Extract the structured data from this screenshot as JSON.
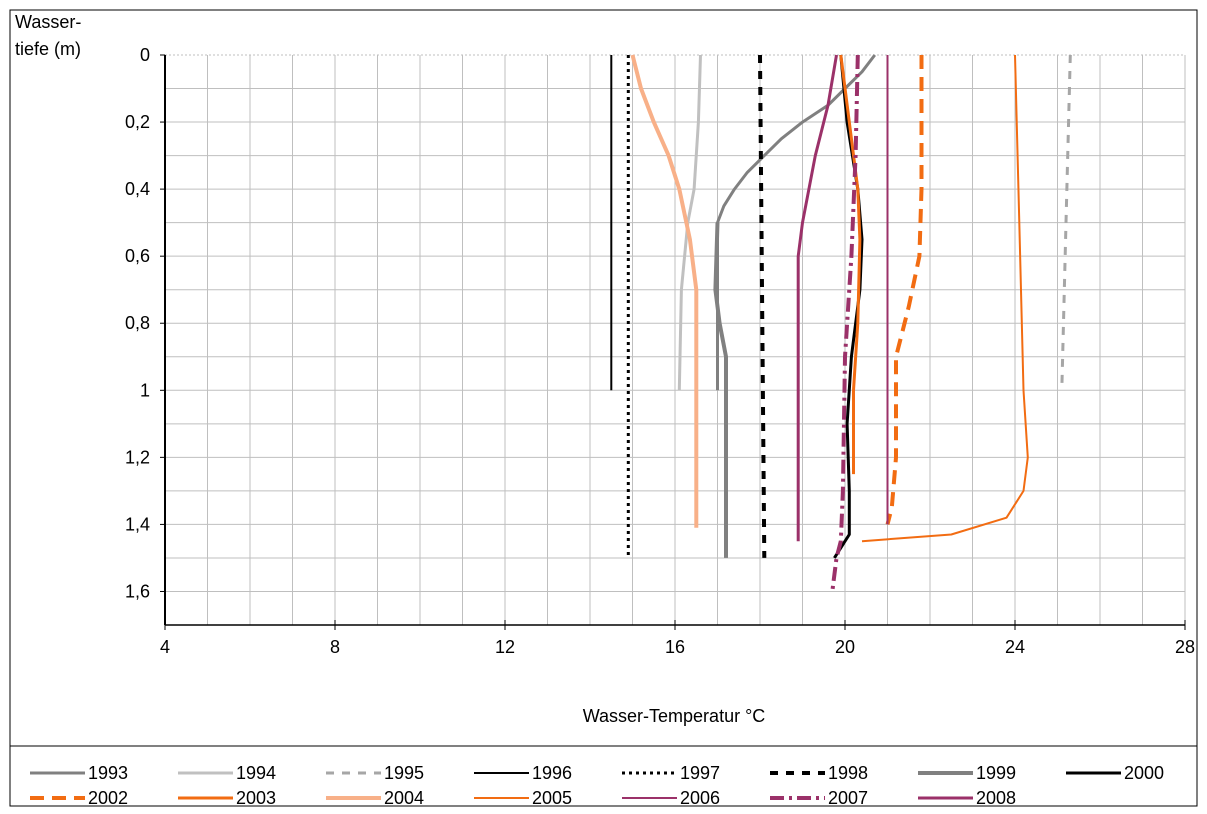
{
  "chart_data": {
    "type": "line",
    "xlabel": "Wasser-Temperatur °C",
    "ylabel_line1": "Wasser-",
    "ylabel_line2": "tiefe (m)",
    "xlim": [
      4,
      28
    ],
    "ylim": [
      0,
      1.7
    ],
    "y_inverted": true,
    "x_ticks": [
      4,
      8,
      12,
      16,
      20,
      24,
      28
    ],
    "x_tick_labels": [
      "4",
      "8",
      "12",
      "16",
      "20",
      "24",
      "28"
    ],
    "y_ticks": [
      0,
      0.2,
      0.4,
      0.6,
      0.8,
      1.0,
      1.2,
      1.4,
      1.6
    ],
    "y_tick_labels": [
      "0",
      "0,2",
      "0,4",
      "0,6",
      "0,8",
      "1",
      "1,2",
      "1,4",
      "1,6"
    ],
    "grid": true,
    "legend_position": "bottom",
    "series": [
      {
        "name": "1993",
        "color": "#808080",
        "style": "solid",
        "width": 3,
        "points": [
          [
            20.7,
            0
          ],
          [
            20.4,
            0.05
          ],
          [
            20.0,
            0.1
          ],
          [
            19.6,
            0.15
          ],
          [
            19.0,
            0.2
          ],
          [
            18.5,
            0.25
          ],
          [
            18.1,
            0.3
          ],
          [
            17.7,
            0.35
          ],
          [
            17.4,
            0.4
          ],
          [
            17.15,
            0.45
          ],
          [
            17.0,
            0.5
          ],
          [
            17.0,
            0.7
          ],
          [
            17.0,
            1.0
          ]
        ]
      },
      {
        "name": "1994",
        "color": "#c0c0c0",
        "style": "solid",
        "width": 3,
        "points": [
          [
            16.6,
            0
          ],
          [
            16.55,
            0.2
          ],
          [
            16.45,
            0.4
          ],
          [
            16.3,
            0.5
          ],
          [
            16.15,
            0.7
          ],
          [
            16.1,
            1.0
          ]
        ]
      },
      {
        "name": "1995",
        "color": "#a6a6a6",
        "style": "dashed",
        "width": 3,
        "points": [
          [
            25.3,
            0
          ],
          [
            25.2,
            0.5
          ],
          [
            25.1,
            1.0
          ]
        ]
      },
      {
        "name": "1996",
        "color": "#000000",
        "style": "solid",
        "width": 2,
        "points": [
          [
            14.5,
            0
          ],
          [
            14.5,
            1.0
          ]
        ]
      },
      {
        "name": "1997",
        "color": "#000000",
        "style": "dotted",
        "width": 3,
        "points": [
          [
            14.9,
            0
          ],
          [
            14.9,
            1.5
          ]
        ]
      },
      {
        "name": "1998",
        "color": "#000000",
        "style": "dashed",
        "width": 4,
        "points": [
          [
            18.0,
            0
          ],
          [
            18.1,
            1.5
          ]
        ]
      },
      {
        "name": "1999",
        "color": "#808080",
        "style": "solid",
        "width": 4,
        "points": [
          [
            17.0,
            0.5
          ],
          [
            16.95,
            0.7
          ],
          [
            17.05,
            0.8
          ],
          [
            17.2,
            0.9
          ],
          [
            17.2,
            1.5
          ]
        ]
      },
      {
        "name": "2000",
        "color": "#000000",
        "style": "solid",
        "width": 3,
        "points": [
          [
            19.9,
            0
          ],
          [
            20.05,
            0.2
          ],
          [
            20.3,
            0.4
          ],
          [
            20.4,
            0.55
          ],
          [
            20.35,
            0.7
          ],
          [
            20.15,
            0.9
          ],
          [
            20.05,
            1.1
          ],
          [
            20.1,
            1.3
          ],
          [
            20.1,
            1.43
          ],
          [
            20.0,
            1.45
          ],
          [
            19.75,
            1.5
          ]
        ]
      },
      {
        "name": "2002",
        "color": "#f26c12",
        "style": "longdash",
        "width": 4,
        "points": [
          [
            21.8,
            0
          ],
          [
            21.8,
            0.4
          ],
          [
            21.75,
            0.6
          ],
          [
            21.5,
            0.75
          ],
          [
            21.2,
            0.9
          ],
          [
            21.2,
            1.2
          ],
          [
            21.1,
            1.35
          ],
          [
            21.0,
            1.4
          ]
        ]
      },
      {
        "name": "2003",
        "color": "#f26c12",
        "style": "solid",
        "width": 3,
        "points": [
          [
            19.9,
            0
          ],
          [
            20.1,
            0.2
          ],
          [
            20.3,
            0.4
          ],
          [
            20.35,
            0.55
          ],
          [
            20.3,
            0.8
          ],
          [
            20.2,
            1.0
          ],
          [
            20.2,
            1.25
          ]
        ]
      },
      {
        "name": "2004",
        "color": "#f8b088",
        "style": "solid",
        "width": 4,
        "points": [
          [
            15.0,
            0
          ],
          [
            15.2,
            0.1
          ],
          [
            15.5,
            0.2
          ],
          [
            15.85,
            0.3
          ],
          [
            16.1,
            0.4
          ],
          [
            16.35,
            0.55
          ],
          [
            16.5,
            0.7
          ],
          [
            16.5,
            1.0
          ],
          [
            16.5,
            1.41
          ]
        ]
      },
      {
        "name": "2005",
        "color": "#f26c12",
        "style": "solid",
        "width": 2,
        "points": [
          [
            24.0,
            0
          ],
          [
            24.1,
            0.5
          ],
          [
            24.2,
            1.0
          ],
          [
            24.3,
            1.2
          ],
          [
            24.2,
            1.3
          ],
          [
            23.8,
            1.38
          ],
          [
            22.5,
            1.43
          ],
          [
            20.4,
            1.45
          ]
        ]
      },
      {
        "name": "2006",
        "color": "#9b3169",
        "style": "solid",
        "width": 2,
        "points": [
          [
            21.0,
            0
          ],
          [
            21.0,
            0.6
          ],
          [
            21.0,
            1.4
          ]
        ]
      },
      {
        "name": "2007",
        "color": "#9b3169",
        "style": "dashdot",
        "width": 4,
        "points": [
          [
            20.3,
            0
          ],
          [
            20.25,
            0.3
          ],
          [
            20.15,
            0.6
          ],
          [
            20.0,
            0.9
          ],
          [
            19.95,
            1.3
          ],
          [
            19.9,
            1.45
          ],
          [
            19.8,
            1.5
          ],
          [
            19.7,
            1.6
          ]
        ]
      },
      {
        "name": "2008",
        "color": "#9b3169",
        "style": "solid",
        "width": 3,
        "points": [
          [
            19.8,
            0
          ],
          [
            19.6,
            0.15
          ],
          [
            19.3,
            0.3
          ],
          [
            19.0,
            0.5
          ],
          [
            18.9,
            0.6
          ],
          [
            18.9,
            0.8
          ],
          [
            18.9,
            1.45
          ]
        ]
      }
    ]
  }
}
